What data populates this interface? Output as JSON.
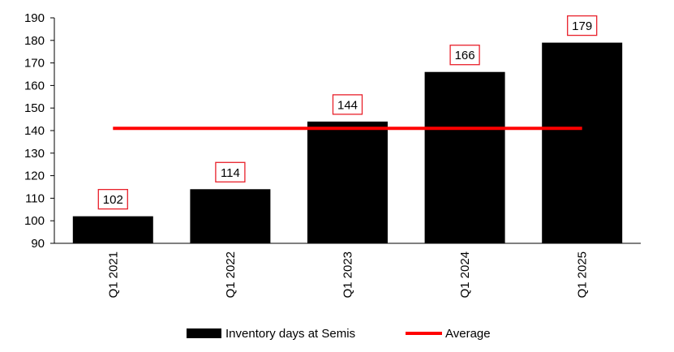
{
  "chart_data": {
    "type": "bar",
    "title": "",
    "xlabel": "",
    "ylabel": "",
    "categories": [
      "Q1 2021",
      "Q1 2022",
      "Q1 2023",
      "Q1 2024",
      "Q1 2025"
    ],
    "series": [
      {
        "name": "Inventory days at Semis",
        "type": "bar",
        "values": [
          102,
          114,
          144,
          166,
          179
        ],
        "color": "#000000"
      },
      {
        "name": "Average",
        "type": "line",
        "values": [
          141,
          141,
          141,
          141,
          141
        ],
        "color": "#ff0000"
      }
    ],
    "data_labels": [
      "102",
      "114",
      "144",
      "166",
      "179"
    ],
    "data_label_border_color": "#e8202a",
    "ylim": [
      90,
      190
    ],
    "yticks": [
      90,
      100,
      110,
      120,
      130,
      140,
      150,
      160,
      170,
      180,
      190
    ],
    "grid": false,
    "legend_position": "bottom"
  }
}
